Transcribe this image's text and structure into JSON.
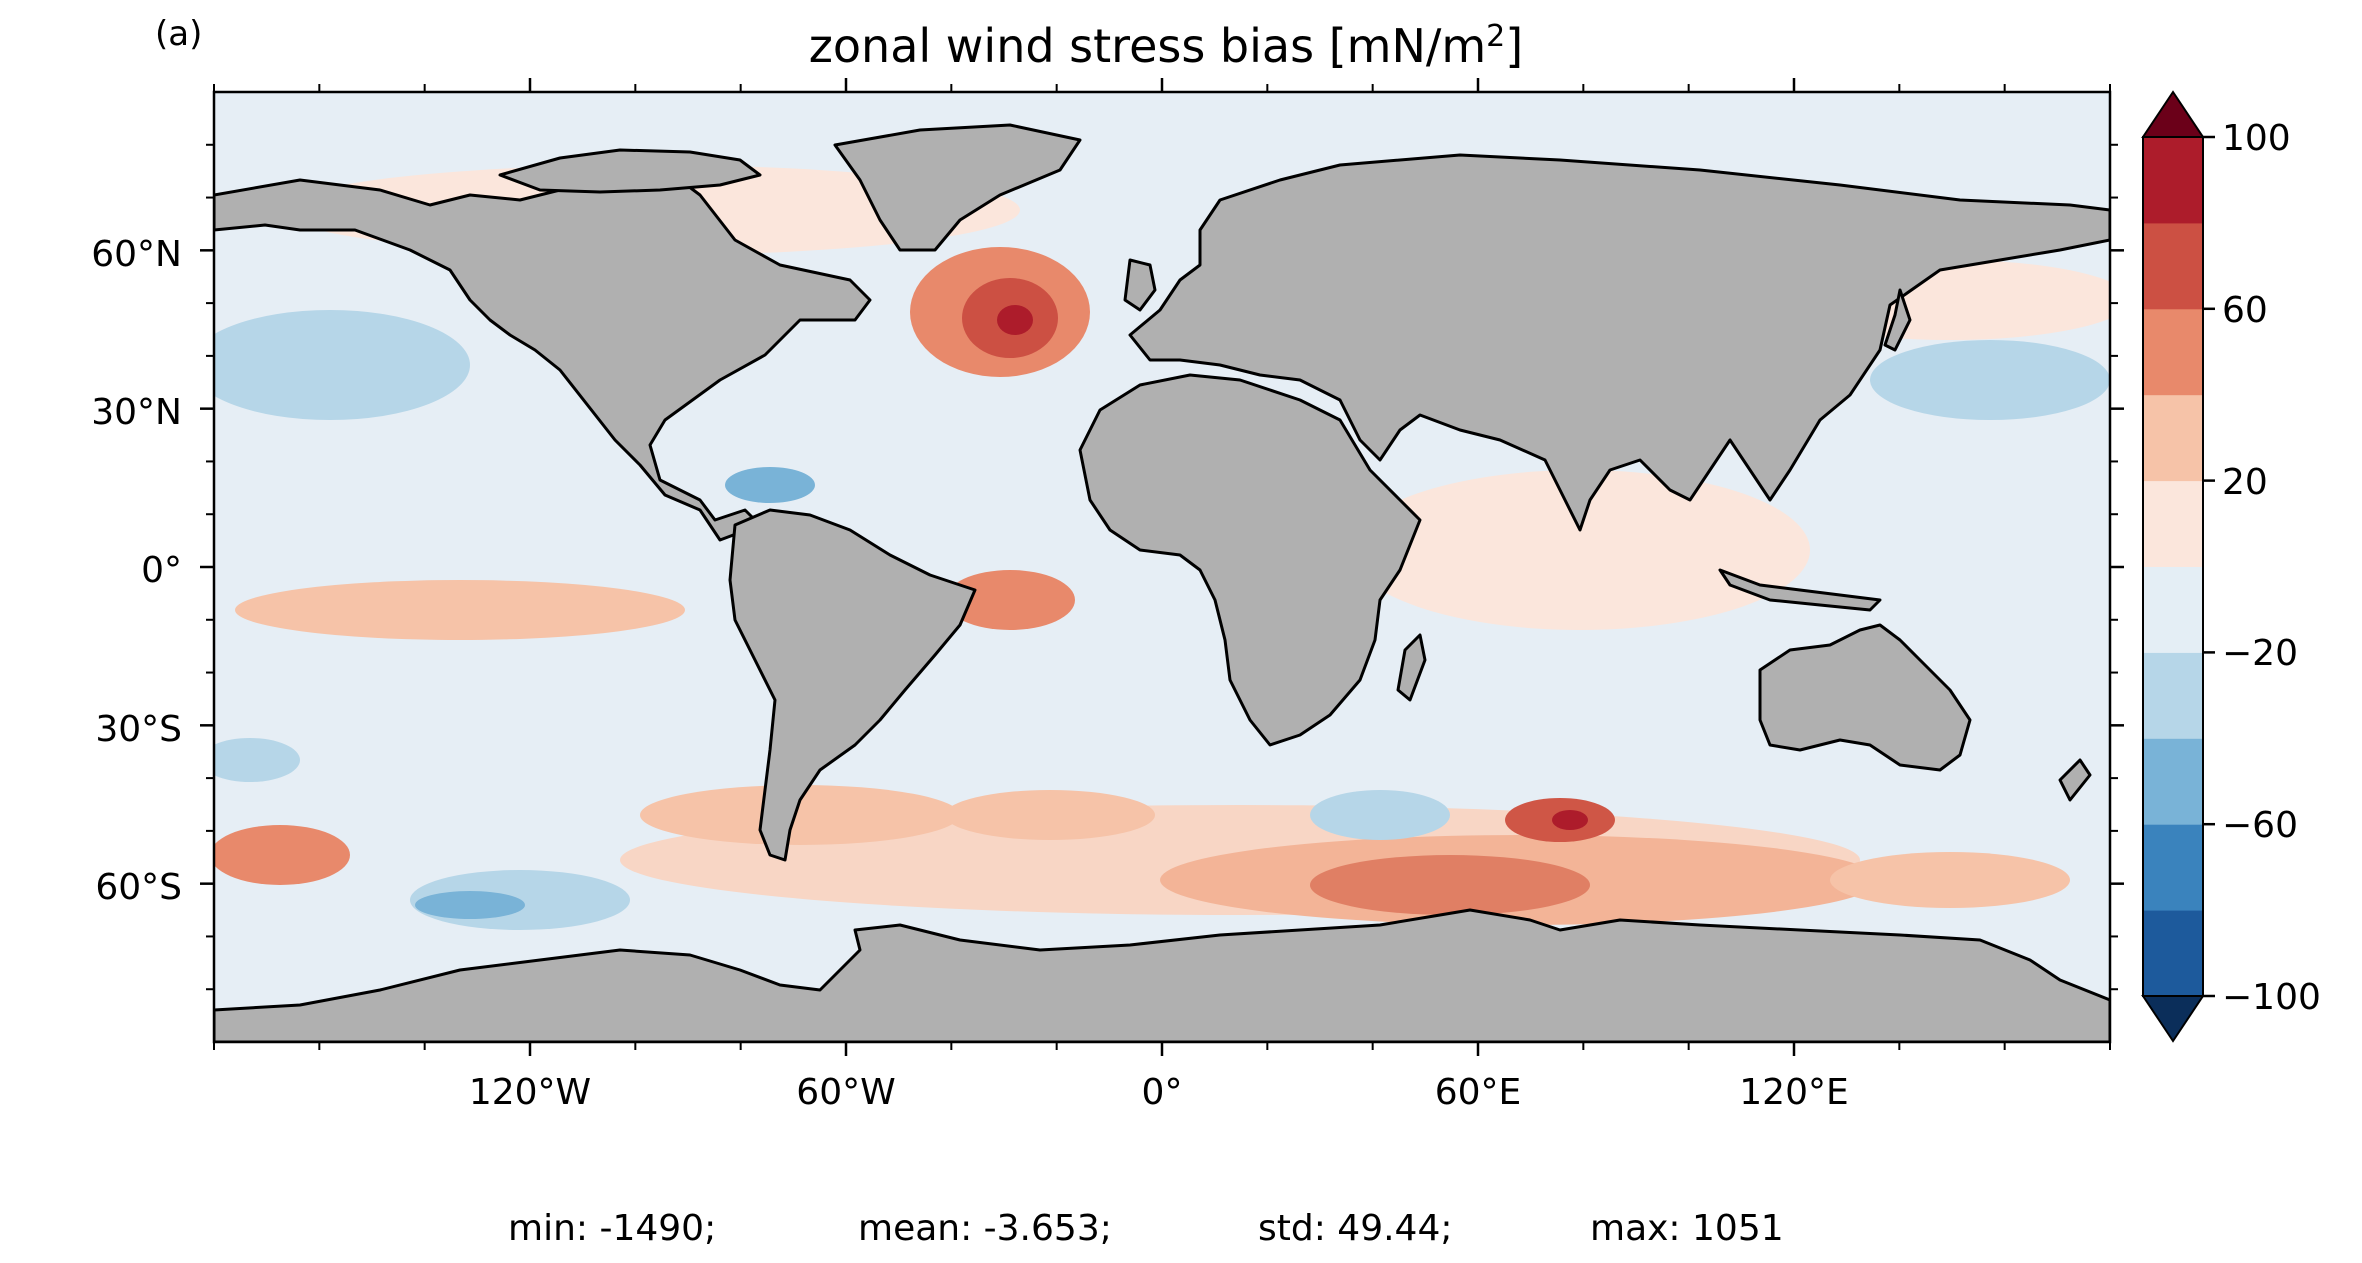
{
  "panel_label": "(a)",
  "title": {
    "prefix": "zonal wind stress bias [mN/m",
    "superscript": "2",
    "suffix": "]"
  },
  "lon_ticks": [
    "120°W",
    "60°W",
    "0°",
    "60°E",
    "120°E"
  ],
  "lat_ticks": [
    "60°N",
    "30°N",
    "0°",
    "30°S",
    "60°S"
  ],
  "colorbar": {
    "levels": [
      -100,
      -80,
      -60,
      -40,
      -20,
      0,
      20,
      40,
      60,
      80,
      100
    ],
    "tick_labels": [
      "100",
      "60",
      "20",
      "−20",
      "−60",
      "−100"
    ],
    "colors": [
      "#1d5a9c",
      "#3a83bd",
      "#79b3d7",
      "#b6d6e8",
      "#e4eef5",
      "#fbe6dc",
      "#f6c3a8",
      "#e8896b",
      "#cc5043",
      "#ad1c2b"
    ],
    "under_color": "#0b2e5a",
    "over_color": "#6b0019"
  },
  "stats": {
    "min": "min: -1490;",
    "mean": "mean: -3.653;",
    "std": "std: 49.44;",
    "max": "max: 1051"
  },
  "land_color": "#b0b0b0"
}
